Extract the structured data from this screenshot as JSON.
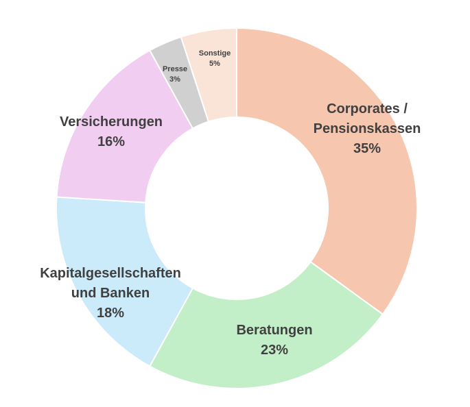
{
  "chart_data": {
    "type": "pie",
    "title": "",
    "categories": [
      "Corporates / Pensionskassen",
      "Beratungen",
      "Kapitalgesellschaften und Banken",
      "Versicherungen",
      "Presse",
      "Sonstige"
    ],
    "values": [
      35,
      23,
      18,
      16,
      3,
      5
    ],
    "labels": [
      {
        "lines": [
          "Corporates /",
          "Pensionskassen"
        ],
        "pct": "35%"
      },
      {
        "lines": [
          "Beratungen"
        ],
        "pct": "23%"
      },
      {
        "lines": [
          "Kapitalgesellschaften",
          "und Banken"
        ],
        "pct": "18%"
      },
      {
        "lines": [
          "Versicherungen"
        ],
        "pct": "16%"
      },
      {
        "lines": [
          "Presse"
        ],
        "pct": "3%"
      },
      {
        "lines": [
          "Sonstige"
        ],
        "pct": "5%"
      }
    ],
    "colors": [
      "#f6c7ae",
      "#c2efc7",
      "#cbeafa",
      "#f1cdf1",
      "#d0d0d0",
      "#fae3d7"
    ],
    "legend": "none"
  }
}
